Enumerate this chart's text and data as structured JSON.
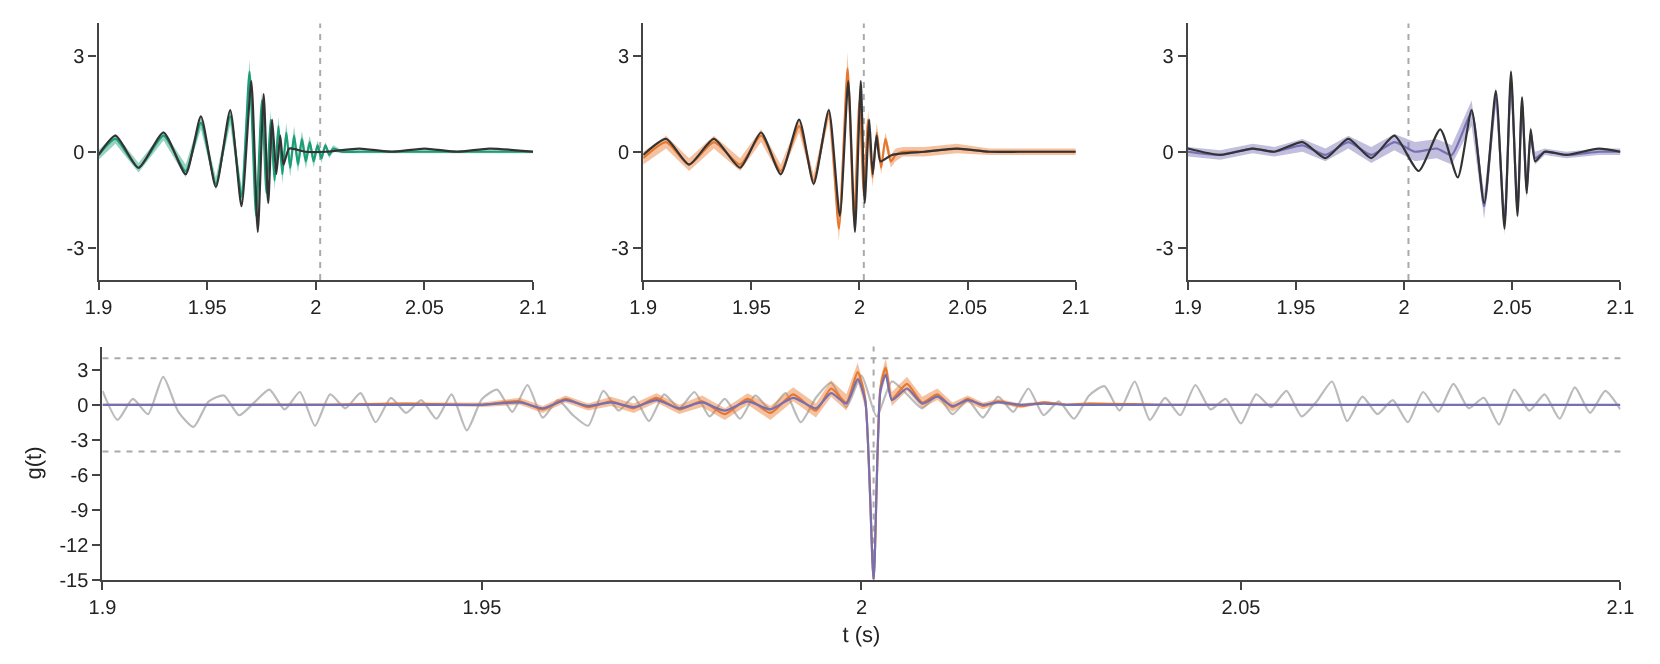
{
  "chart_data": [
    {
      "type": "line",
      "xlim": [
        1.9,
        2.1
      ],
      "ylim": [
        -4,
        4
      ],
      "xticks": [
        1.9,
        1.95,
        2,
        2.05,
        2.1
      ],
      "yticks": [
        -3,
        0,
        3
      ],
      "ref_lines": [
        {
          "axis": "x",
          "value": 2.002,
          "line_style": "dotted",
          "color": "#aaaaaa"
        }
      ],
      "series": [
        {
          "color": "#1b9e77",
          "x": [
            1.9,
            1.9078,
            1.9184,
            1.9299,
            1.9401,
            1.9471,
            1.954,
            1.9606,
            1.9658,
            1.9695,
            1.9725,
            1.9752,
            1.9773,
            1.9792,
            1.981,
            1.9828,
            1.9846,
            1.9864,
            1.9882,
            1.99,
            1.9918,
            1.9936,
            1.9954,
            1.9972,
            1.999,
            2.0008,
            2.0026,
            2.0044,
            2.0062,
            2.008,
            2.012,
            2.02,
            2.05,
            2.1
          ],
          "values": [
            -0.1,
            0.4,
            -0.5,
            0.5,
            -0.6,
            0.9,
            -1.0,
            1.1,
            -1.4,
            2.5,
            -2.0,
            1.6,
            -1.3,
            1.0,
            -0.9,
            0.8,
            -0.7,
            0.6,
            -0.5,
            0.5,
            -0.4,
            0.4,
            -0.3,
            0.3,
            -0.3,
            0.2,
            -0.2,
            0.2,
            -0.1,
            0.1,
            0.0,
            0.0,
            0.0,
            0.0
          ],
          "lower": [
            -0.25,
            0.25,
            -0.65,
            0.35,
            -0.8,
            0.7,
            -1.2,
            0.85,
            -1.7,
            2.1,
            -2.35,
            1.3,
            -1.6,
            0.7,
            -1.2,
            0.5,
            -1.0,
            0.3,
            -0.8,
            0.2,
            -0.65,
            0.15,
            -0.55,
            0.1,
            -0.5,
            0.05,
            -0.35,
            0.1,
            -0.2,
            0.0,
            -0.05,
            -0.05,
            -0.05,
            -0.05
          ],
          "upper": [
            0.05,
            0.55,
            -0.35,
            0.65,
            -0.4,
            1.1,
            -0.8,
            1.35,
            -1.1,
            2.9,
            -1.65,
            1.9,
            -1.0,
            1.3,
            -0.6,
            1.1,
            -0.4,
            0.9,
            -0.2,
            0.8,
            -0.15,
            0.65,
            -0.05,
            0.5,
            -0.1,
            0.35,
            -0.05,
            0.3,
            0.0,
            0.2,
            0.05,
            0.05,
            0.05,
            0.05
          ]
        },
        {
          "color": "#333333",
          "x": [
            1.9,
            1.9078,
            1.9184,
            1.9299,
            1.9401,
            1.9471,
            1.954,
            1.9606,
            1.9658,
            1.9703,
            1.9733,
            1.976,
            1.9781,
            1.9799,
            1.9818,
            1.9836,
            1.9851,
            1.9878,
            1.995,
            2.005,
            2.02,
            2.035,
            2.05,
            2.065,
            2.08,
            2.1
          ],
          "values": [
            -0.1,
            0.5,
            -0.5,
            0.6,
            -0.7,
            1.1,
            -1.1,
            1.3,
            -1.7,
            2.2,
            -2.5,
            1.8,
            -1.6,
            1.0,
            -0.7,
            0.5,
            -0.4,
            0.1,
            0.0,
            0.0,
            0.1,
            0.0,
            0.1,
            0.0,
            0.1,
            0.0
          ]
        }
      ]
    },
    {
      "type": "line",
      "xlim": [
        1.9,
        2.1
      ],
      "ylim": [
        -4,
        4
      ],
      "xticks": [
        1.9,
        1.95,
        2,
        2.05,
        2.1
      ],
      "yticks": [
        -3,
        0,
        3
      ],
      "ref_lines": [
        {
          "axis": "x",
          "value": 2.002,
          "line_style": "dotted",
          "color": "#aaaaaa"
        }
      ],
      "series": [
        {
          "color": "#e8772e",
          "x": [
            1.9,
            1.9106,
            1.9212,
            1.9327,
            1.9448,
            1.9545,
            1.9636,
            1.9721,
            1.9788,
            1.9858,
            1.9905,
            1.9945,
            1.9975,
            2.0,
            2.002,
            2.004,
            2.006,
            2.008,
            2.01,
            2.012,
            2.0145,
            2.0167,
            2.02,
            2.03,
            2.045,
            2.06,
            2.075,
            2.09,
            2.1
          ],
          "values": [
            -0.2,
            0.3,
            -0.4,
            0.3,
            -0.4,
            0.5,
            -0.6,
            0.8,
            -0.9,
            1.2,
            -2.4,
            2.6,
            -2.1,
            1.6,
            -1.3,
            1.0,
            -0.8,
            0.6,
            -0.5,
            0.4,
            -0.3,
            -0.1,
            0.0,
            0.0,
            0.1,
            0.0,
            0.0,
            0.0,
            0.0
          ],
          "lower": [
            -0.4,
            0.1,
            -0.6,
            0.1,
            -0.6,
            0.3,
            -0.8,
            0.6,
            -1.1,
            1.0,
            -2.8,
            2.1,
            -2.4,
            1.3,
            -1.6,
            0.7,
            -1.1,
            0.3,
            -0.7,
            0.2,
            -0.5,
            -0.3,
            -0.15,
            -0.15,
            -0.05,
            -0.1,
            -0.1,
            -0.1,
            -0.1
          ],
          "upper": [
            0.0,
            0.5,
            -0.2,
            0.5,
            -0.2,
            0.7,
            -0.4,
            1.0,
            -0.7,
            1.4,
            -2.0,
            3.1,
            -1.8,
            1.9,
            -1.0,
            1.3,
            -0.5,
            0.9,
            -0.3,
            0.6,
            -0.1,
            0.1,
            0.15,
            0.15,
            0.25,
            0.1,
            0.1,
            0.1,
            0.1
          ]
        },
        {
          "color": "#333333",
          "x": [
            1.9,
            1.9106,
            1.9212,
            1.9327,
            1.9448,
            1.9545,
            1.9636,
            1.9721,
            1.9788,
            1.9858,
            1.9909,
            1.9948,
            1.9979,
            2.0006,
            2.0024,
            2.0045,
            2.0061,
            2.0079,
            2.0097,
            2.015,
            2.03,
            2.045,
            2.06,
            2.075,
            2.09,
            2.1
          ],
          "values": [
            -0.1,
            0.4,
            -0.4,
            0.4,
            -0.5,
            0.6,
            -0.7,
            1.0,
            -1.0,
            1.3,
            -2.0,
            2.2,
            -2.5,
            2.2,
            -1.6,
            1.0,
            -0.7,
            0.5,
            -0.3,
            -0.1,
            0.0,
            0.1,
            0.0,
            0.0,
            0.0,
            0.0
          ]
        }
      ]
    },
    {
      "type": "line",
      "xlim": [
        1.9,
        2.1
      ],
      "ylim": [
        -4,
        4
      ],
      "xticks": [
        1.9,
        1.95,
        2,
        2.05,
        2.1
      ],
      "yticks": [
        -3,
        0,
        3
      ],
      "ref_lines": [
        {
          "axis": "x",
          "value": 2.002,
          "line_style": "dotted",
          "color": "#aaaaaa"
        }
      ],
      "series": [
        {
          "color": "#7570b3",
          "x": [
            1.9,
            1.915,
            1.93,
            1.94,
            1.953,
            1.9636,
            1.9742,
            1.9848,
            1.9955,
            2.005,
            2.015,
            2.022,
            2.0312,
            2.037,
            2.0424,
            2.0464,
            2.0494,
            2.0524,
            2.0545,
            2.0567,
            2.0585,
            2.0606,
            2.065,
            2.075,
            2.09,
            2.1
          ],
          "values": [
            0.0,
            -0.1,
            0.1,
            0.0,
            0.2,
            -0.1,
            0.3,
            -0.1,
            0.3,
            0.0,
            0.1,
            -0.1,
            1.2,
            -1.7,
            1.7,
            -2.2,
            2.2,
            -1.8,
            1.5,
            -1.2,
            0.6,
            -0.2,
            0.0,
            -0.1,
            0.0,
            0.0
          ],
          "lower": [
            -0.15,
            -0.25,
            -0.05,
            -0.15,
            0.0,
            -0.3,
            0.1,
            -0.35,
            0.05,
            -0.3,
            -0.2,
            -0.4,
            0.8,
            -2.1,
            1.4,
            -2.6,
            1.8,
            -2.1,
            1.2,
            -1.5,
            0.4,
            -0.4,
            -0.1,
            -0.2,
            -0.1,
            -0.1
          ],
          "upper": [
            0.15,
            0.05,
            0.25,
            0.15,
            0.4,
            0.1,
            0.5,
            0.15,
            0.55,
            0.3,
            0.4,
            0.2,
            1.6,
            -1.3,
            2.0,
            -1.8,
            2.6,
            -1.5,
            1.8,
            -0.9,
            0.8,
            0.0,
            0.1,
            0.0,
            0.1,
            0.1
          ]
        },
        {
          "color": "#333333",
          "x": [
            1.9,
            1.915,
            1.93,
            1.94,
            1.953,
            1.9636,
            1.9742,
            1.9848,
            1.9955,
            2.0067,
            2.0167,
            2.0248,
            2.0312,
            2.037,
            2.0424,
            2.0464,
            2.0494,
            2.0524,
            2.0545,
            2.0567,
            2.0585,
            2.0606,
            2.065,
            2.075,
            2.09,
            2.1
          ],
          "values": [
            0.1,
            -0.1,
            0.1,
            0.0,
            0.3,
            -0.2,
            0.4,
            -0.2,
            0.5,
            -0.6,
            0.7,
            -0.8,
            1.3,
            -1.6,
            1.9,
            -2.4,
            2.5,
            -2.0,
            1.7,
            -1.3,
            0.7,
            -0.3,
            0.0,
            -0.1,
            0.1,
            0.0
          ]
        }
      ]
    },
    {
      "type": "line",
      "xlabel": "t (s)",
      "ylabel": "g(t)",
      "xlim": [
        1.9,
        2.1
      ],
      "ylim": [
        -15,
        5
      ],
      "xticks": [
        1.9,
        1.95,
        2,
        2.05,
        2.1
      ],
      "yticks": [
        -15,
        -12,
        -9,
        -6,
        -3,
        0,
        3
      ],
      "ref_lines": [
        {
          "axis": "y",
          "value": 4,
          "line_style": "dotted",
          "color": "#aaaaaa"
        },
        {
          "axis": "y",
          "value": -4,
          "line_style": "dotted",
          "color": "#aaaaaa"
        },
        {
          "axis": "x",
          "value": 2.0016,
          "line_style": "dotted",
          "color": "#aaaaaa"
        }
      ],
      "series": [
        {
          "color": "#bbbbbb",
          "x": [
            1.9,
            1.902,
            1.904,
            1.906,
            1.908,
            1.91,
            1.912,
            1.914,
            1.916,
            1.918,
            1.92,
            1.922,
            1.924,
            1.926,
            1.928,
            1.93,
            1.932,
            1.934,
            1.936,
            1.938,
            1.94,
            1.942,
            1.944,
            1.946,
            1.948,
            1.95,
            1.952,
            1.954,
            1.956,
            1.958,
            1.96,
            1.962,
            1.964,
            1.966,
            1.968,
            1.97,
            1.972,
            1.974,
            1.976,
            1.978,
            1.98,
            1.982,
            1.984,
            1.986,
            1.988,
            1.99,
            1.992,
            1.994,
            1.996,
            1.998,
            2.0,
            2.002,
            2.004,
            2.006,
            2.008,
            2.01,
            2.012,
            2.014,
            2.016,
            2.018,
            2.02,
            2.022,
            2.024,
            2.026,
            2.028,
            2.03,
            2.032,
            2.034,
            2.036,
            2.038,
            2.04,
            2.042,
            2.044,
            2.046,
            2.048,
            2.05,
            2.052,
            2.054,
            2.056,
            2.058,
            2.06,
            2.062,
            2.064,
            2.066,
            2.068,
            2.07,
            2.072,
            2.074,
            2.076,
            2.078,
            2.08,
            2.082,
            2.084,
            2.086,
            2.088,
            2.09,
            2.092,
            2.094,
            2.096,
            2.098,
            2.1
          ],
          "values": [
            1.2,
            -1.3,
            0.5,
            -0.8,
            2.4,
            -0.6,
            -1.9,
            0.3,
            0.8,
            -0.9,
            0.2,
            1.3,
            -0.4,
            1.1,
            -1.8,
            0.9,
            -0.3,
            1.0,
            -1.5,
            0.6,
            -0.7,
            0.4,
            -1.2,
            0.9,
            -2.2,
            0.5,
            1.3,
            -0.6,
            1.7,
            -1.1,
            0.4,
            -0.9,
            -1.8,
            1.2,
            -0.5,
            0.7,
            -1.4,
            0.9,
            -0.3,
            1.1,
            -1.0,
            0.5,
            -1.2,
            0.8,
            -0.4,
            1.0,
            -1.5,
            0.6,
            1.9,
            -0.2,
            2.5,
            -1.0,
            2.0,
            0.9,
            -0.3,
            0.8,
            -0.8,
            0.4,
            -1.1,
            0.7,
            -0.6,
            1.4,
            -0.9,
            0.3,
            -1.2,
            0.8,
            1.6,
            -0.5,
            2.0,
            -1.3,
            0.6,
            -0.9,
            1.7,
            -0.4,
            0.5,
            -1.6,
            0.9,
            -0.2,
            1.2,
            -1.0,
            0.3,
            2.0,
            -1.4,
            0.7,
            -0.8,
            0.4,
            -1.5,
            1.1,
            -0.6,
            1.8,
            -0.3,
            0.6,
            -1.7,
            1.3,
            -0.5,
            0.9,
            -1.2,
            1.5,
            -0.7,
            1.2,
            -0.4
          ]
        },
        {
          "color": "#e8772e",
          "x": [
            1.9,
            1.91,
            1.92,
            1.93,
            1.94,
            1.95,
            1.955,
            1.958,
            1.961,
            1.964,
            1.967,
            1.97,
            1.973,
            1.976,
            1.979,
            1.982,
            1.985,
            1.988,
            1.991,
            1.994,
            1.996,
            1.998,
            1.9995,
            2.0005,
            2.0016,
            2.0025,
            2.0032,
            2.004,
            2.006,
            2.008,
            2.01,
            2.012,
            2.014,
            2.016,
            2.018,
            2.021,
            2.024,
            2.027,
            2.03,
            2.04,
            2.06,
            2.08,
            2.1
          ],
          "values": [
            null,
            null,
            0,
            0,
            0.1,
            0,
            0.3,
            -0.4,
            0.5,
            -0.2,
            0.3,
            -0.3,
            0.6,
            -0.4,
            0.3,
            -0.8,
            0.5,
            -0.7,
            0.9,
            -0.5,
            1.4,
            0.2,
            2.8,
            0.5,
            -15,
            1.5,
            3.2,
            0.5,
            1.8,
            0.2,
            0.9,
            -0.2,
            0.5,
            -0.1,
            0.3,
            -0.1,
            0.2,
            0,
            0.1,
            0,
            0,
            null,
            null
          ],
          "lower": [
            -0.1,
            -0.1,
            -0.1,
            -0.1,
            0.0,
            -0.2,
            0.0,
            -0.7,
            0.2,
            -0.5,
            -0.1,
            -0.7,
            0.2,
            -0.8,
            -0.2,
            -1.3,
            0.0,
            -1.3,
            0.3,
            -1.1,
            0.7,
            -0.5,
            2.0,
            -0.3,
            -15,
            0.7,
            2.4,
            -0.1,
            1.2,
            -0.3,
            0.4,
            -0.6,
            0.2,
            -0.4,
            0.1,
            -0.3,
            0.1,
            -0.1,
            0.0,
            -0.05,
            -0.05,
            -0.05,
            -0.05
          ],
          "upper": [
            0.1,
            0.1,
            0.1,
            0.1,
            0.2,
            0.2,
            0.6,
            -0.1,
            0.8,
            0.1,
            0.7,
            0.1,
            1.0,
            0.0,
            0.8,
            -0.3,
            1.0,
            -0.1,
            1.5,
            0.1,
            2.1,
            0.9,
            3.6,
            1.3,
            -13.5,
            2.3,
            4.0,
            1.1,
            2.4,
            0.7,
            1.4,
            0.2,
            0.8,
            0.2,
            0.5,
            0.1,
            0.3,
            0.1,
            0.2,
            0.05,
            0.05,
            0.05,
            0.05
          ]
        },
        {
          "color": "#7570b3",
          "x": [
            1.9,
            1.91,
            1.92,
            1.93,
            1.94,
            1.95,
            1.955,
            1.958,
            1.961,
            1.964,
            1.967,
            1.97,
            1.973,
            1.976,
            1.979,
            1.982,
            1.985,
            1.988,
            1.991,
            1.994,
            1.996,
            1.998,
            1.9995,
            2.0005,
            2.0016,
            2.0025,
            2.0032,
            2.004,
            2.006,
            2.008,
            2.01,
            2.012,
            2.014,
            2.016,
            2.018,
            2.021,
            2.024,
            2.027,
            2.03,
            2.04,
            2.06,
            2.08,
            2.1
          ],
          "values": [
            0,
            0,
            0,
            0,
            0,
            0,
            0.2,
            -0.3,
            0.4,
            -0.1,
            0.2,
            -0.2,
            0.4,
            -0.3,
            0.2,
            -0.5,
            0.3,
            -0.4,
            0.6,
            -0.3,
            1.0,
            0.1,
            2.2,
            0.3,
            -15,
            1.2,
            2.6,
            0.4,
            1.4,
            0.1,
            0.7,
            -0.1,
            0.4,
            0,
            0.2,
            0,
            0.1,
            0,
            0,
            0,
            0,
            0,
            0
          ]
        }
      ]
    }
  ]
}
